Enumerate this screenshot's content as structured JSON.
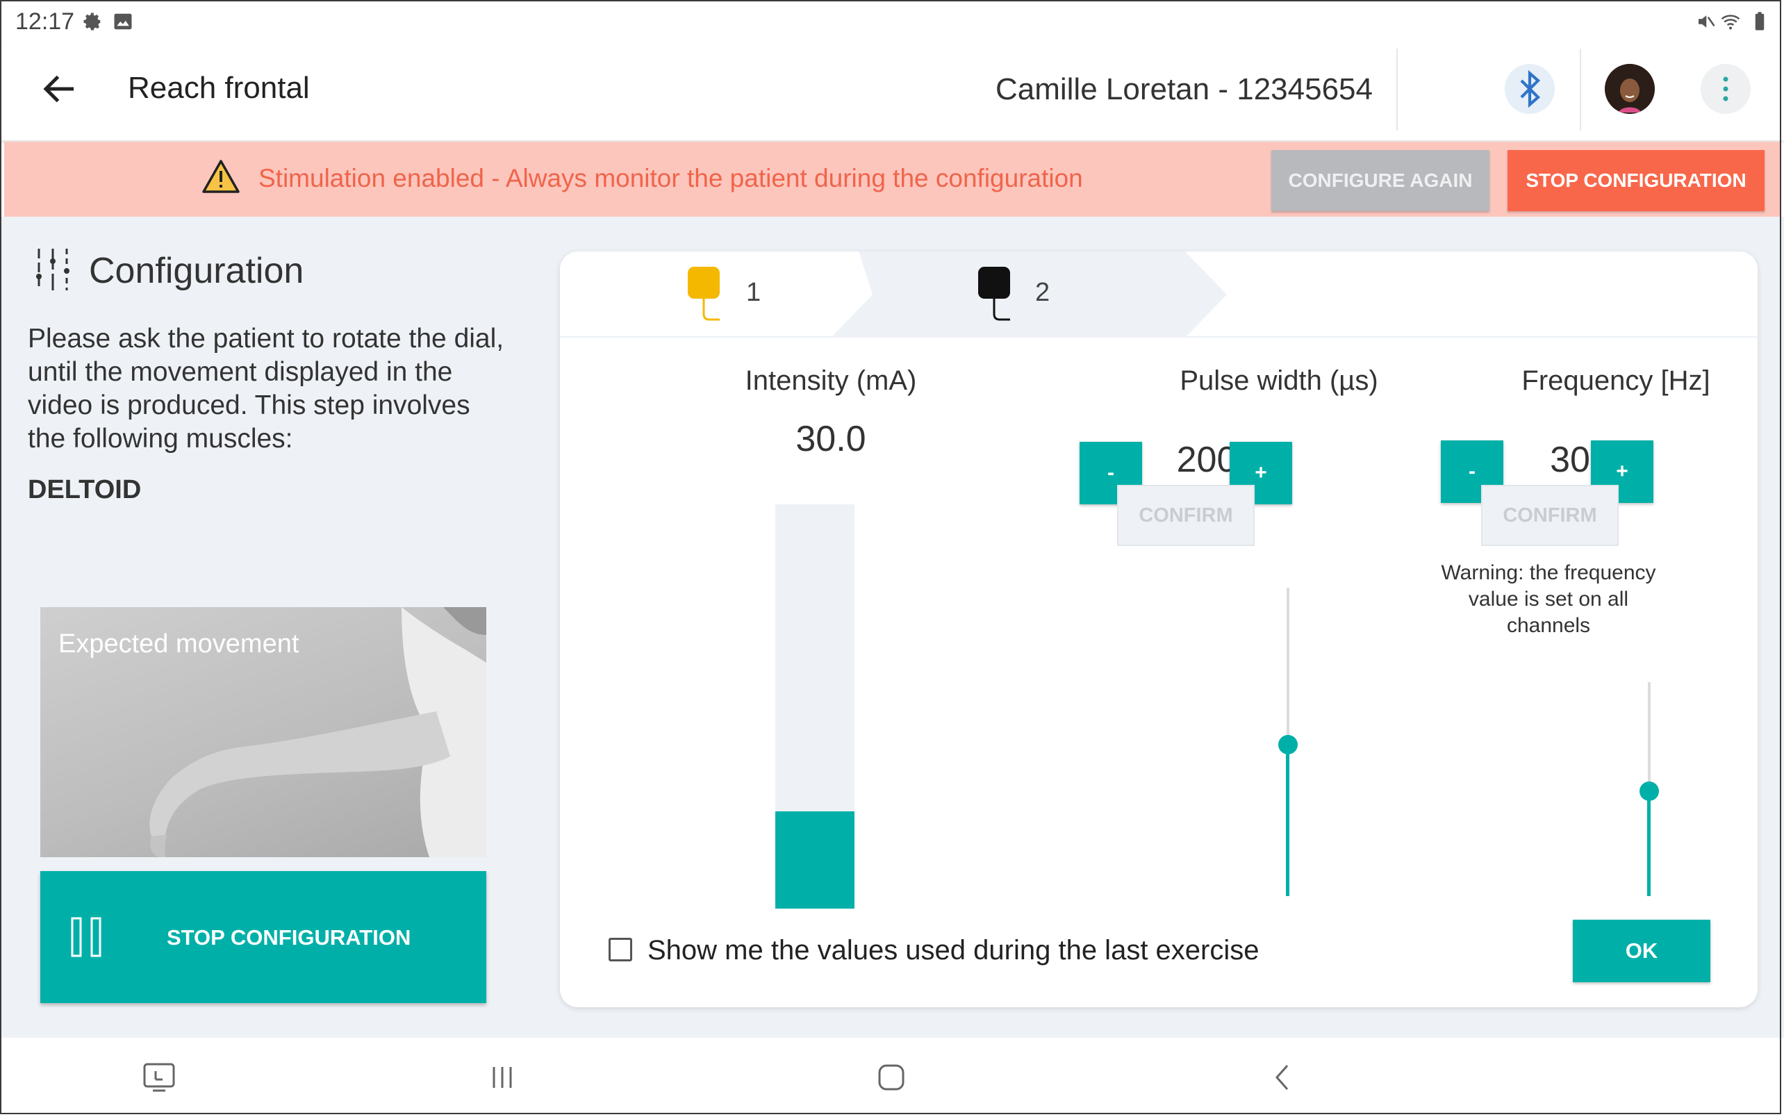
{
  "status_bar": {
    "time": "12:17",
    "left_icons": [
      "settings-icon",
      "image-icon"
    ],
    "right_icons": [
      "mute-icon",
      "wifi-icon",
      "battery-icon"
    ]
  },
  "app_bar": {
    "title": "Reach frontal",
    "patient": "Camille Loretan - 12345654",
    "icons": [
      "back-arrow-icon",
      "bluetooth-icon",
      "avatar",
      "more-vert-icon"
    ]
  },
  "banner": {
    "message": "Stimulation enabled - Always monitor the patient during the configuration",
    "configure_again": "CONFIGURE AGAIN",
    "stop_configuration": "STOP CONFIGURATION",
    "colors": {
      "background": "#fcc6bd",
      "text": "#f0644a",
      "stop": "#f9674b"
    }
  },
  "left_panel": {
    "title": "Configuration",
    "instructions": "Please ask the patient to rotate the dial, until the movement displayed in the video is produced. This step involves the following muscles:",
    "muscle": "DELTOID",
    "video_label": "Expected movement",
    "stop_button": "STOP CONFIGURATION"
  },
  "channels": {
    "tabs": [
      {
        "label": "1",
        "color": "#f5b800"
      },
      {
        "label": "2",
        "color": "#111111"
      }
    ]
  },
  "intensity": {
    "title": "Intensity (mA)",
    "value": "30.0",
    "level": 0.24
  },
  "pulse_width": {
    "title": "Pulse width (µs)",
    "value": "200",
    "minus": "-",
    "plus": "+",
    "confirm": "CONFIRM",
    "level": 0.49
  },
  "frequency": {
    "title": "Frequency [Hz]",
    "value": "30",
    "minus": "-",
    "plus": "+",
    "confirm": "CONFIRM",
    "warning": "Warning: the frequency value is set on all channels",
    "level": 0.49
  },
  "footer": {
    "checkbox_label": "Show me the values used during the last exercise",
    "checked": false,
    "ok": "OK"
  },
  "nav_bar": {
    "icons": [
      "screenshot-icon",
      "recent-apps-icon",
      "home-icon",
      "nav-back-icon"
    ]
  },
  "accent_color": "#00b0a8"
}
